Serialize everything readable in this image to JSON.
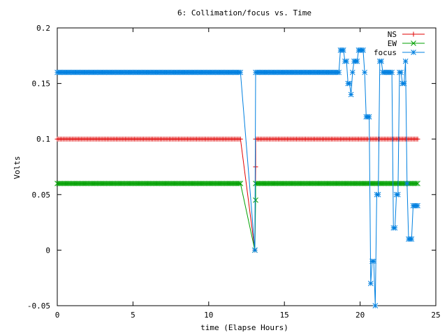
{
  "chart_data": {
    "type": "line",
    "title": "6: Collimation/focus vs. Time",
    "xlabel": "time (Elapse Hours)",
    "ylabel": "Volts",
    "xlim": [
      0,
      25
    ],
    "ylim": [
      -0.05,
      0.2
    ],
    "x_ticks": [
      0,
      5,
      10,
      15,
      20,
      25
    ],
    "x_tick_labels": [
      "0",
      "5",
      "10",
      "15",
      "20",
      "25"
    ],
    "y_ticks": [
      -0.05,
      0,
      0.05,
      0.1,
      0.15,
      0.2
    ],
    "y_tick_labels": [
      "-0.05",
      "0",
      "0.05",
      "0.1",
      "0.15",
      "0.2"
    ],
    "grid": false,
    "legend_position": "top-right",
    "series": [
      {
        "name": "NS",
        "color": "#e00000",
        "marker": "plus",
        "segments": [
          {
            "x_start": 0,
            "x_end": 12.05,
            "step": 0.1,
            "value": 0.1
          },
          {
            "points": [
              [
                13.05,
                0.0
              ],
              [
                13.1,
                0.075
              ]
            ]
          },
          {
            "x_start": 13.1,
            "x_end": 23.8,
            "step": 0.1,
            "value": 0.1
          }
        ]
      },
      {
        "name": "EW",
        "color": "#00a000",
        "marker": "cross",
        "segments": [
          {
            "x_start": 0,
            "x_end": 12.05,
            "step": 0.1,
            "value": 0.06
          },
          {
            "points": [
              [
                13.05,
                0.0
              ],
              [
                13.1,
                0.045
              ]
            ]
          },
          {
            "x_start": 13.1,
            "x_end": 23.8,
            "step": 0.1,
            "value": 0.06
          }
        ]
      },
      {
        "name": "focus",
        "color": "#0080e0",
        "marker": "star",
        "segments": [
          {
            "x_start": 0,
            "x_end": 12.05,
            "step": 0.1,
            "value": 0.16
          },
          {
            "points": [
              [
                13.05,
                0.0
              ]
            ]
          },
          {
            "x_start": 13.1,
            "x_end": 18.6,
            "step": 0.1,
            "value": 0.16
          },
          {
            "points": [
              [
                18.7,
                0.18
              ],
              [
                18.8,
                0.18
              ],
              [
                18.9,
                0.18
              ],
              [
                19.0,
                0.17
              ],
              [
                19.1,
                0.17
              ],
              [
                19.2,
                0.15
              ],
              [
                19.3,
                0.15
              ],
              [
                19.4,
                0.14
              ],
              [
                19.5,
                0.16
              ],
              [
                19.6,
                0.17
              ],
              [
                19.7,
                0.17
              ],
              [
                19.8,
                0.17
              ],
              [
                19.9,
                0.18
              ],
              [
                20.0,
                0.18
              ],
              [
                20.1,
                0.18
              ],
              [
                20.2,
                0.18
              ],
              [
                20.3,
                0.16
              ],
              [
                20.4,
                0.12
              ],
              [
                20.5,
                0.12
              ],
              [
                20.6,
                0.12
              ],
              [
                20.7,
                -0.03
              ],
              [
                20.8,
                -0.01
              ],
              [
                20.9,
                -0.01
              ],
              [
                21.0,
                -0.05
              ],
              [
                21.1,
                0.05
              ],
              [
                21.2,
                0.05
              ],
              [
                21.3,
                0.17
              ],
              [
                21.4,
                0.17
              ],
              [
                21.5,
                0.16
              ],
              [
                21.6,
                0.16
              ],
              [
                21.7,
                0.16
              ],
              [
                21.8,
                0.16
              ],
              [
                21.9,
                0.16
              ],
              [
                22.0,
                0.16
              ],
              [
                22.1,
                0.16
              ],
              [
                22.2,
                0.02
              ],
              [
                22.3,
                0.02
              ],
              [
                22.4,
                0.05
              ],
              [
                22.5,
                0.05
              ],
              [
                22.6,
                0.16
              ],
              [
                22.7,
                0.16
              ],
              [
                22.8,
                0.15
              ],
              [
                22.9,
                0.15
              ],
              [
                23.0,
                0.17
              ],
              [
                23.1,
                0.06
              ],
              [
                23.2,
                0.01
              ],
              [
                23.3,
                0.01
              ],
              [
                23.4,
                0.01
              ],
              [
                23.5,
                0.04
              ],
              [
                23.6,
                0.04
              ],
              [
                23.7,
                0.04
              ],
              [
                23.8,
                0.04
              ]
            ]
          }
        ]
      }
    ]
  }
}
